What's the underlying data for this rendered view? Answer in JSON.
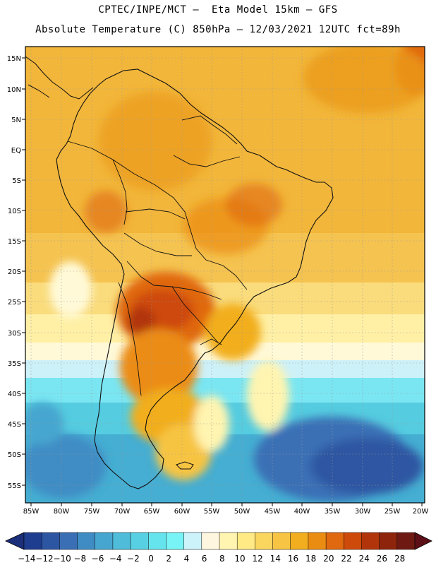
{
  "header": {
    "line1": "CPTEC/INPE/MCT –  Eta Model 15km – GFS",
    "line2": "Absolute Temperature (C) 850hPa – 12/03/2021 12UTC fct=89h"
  },
  "axes": {
    "lat_labels": [
      "15N",
      "10N",
      "5N",
      "EQ",
      "5S",
      "10S",
      "15S",
      "20S",
      "25S",
      "30S",
      "35S",
      "40S",
      "45S",
      "50S",
      "55S"
    ],
    "lon_labels": [
      "85W",
      "80W",
      "75W",
      "70W",
      "65W",
      "60W",
      "55W",
      "50W",
      "45W",
      "40W",
      "35W",
      "30W",
      "25W",
      "20W"
    ]
  },
  "colorbar": {
    "labels": [
      "-14",
      "-12",
      "-10",
      "-8",
      "-6",
      "-4",
      "-2",
      "0",
      "2",
      "4",
      "6",
      "8",
      "10",
      "12",
      "14",
      "16",
      "18",
      "20",
      "22",
      "24",
      "26",
      "28"
    ],
    "colors": [
      "#1f3d8f",
      "#2d56a2",
      "#3a6fb5",
      "#3f8cc4",
      "#47a6cf",
      "#4fbcd9",
      "#58d0e3",
      "#66e4ee",
      "#79f4f6",
      "#cdf3fa",
      "#fff6e0",
      "#fff4b0",
      "#ffea85",
      "#fbd65f",
      "#f7c443",
      "#f2ae1e",
      "#eb8c12",
      "#e0680e",
      "#cd4a0b",
      "#b1340a",
      "#8e240c",
      "#6e1a12"
    ]
  },
  "map": {
    "feature": "South America",
    "field": "850hPa temperature"
  }
}
